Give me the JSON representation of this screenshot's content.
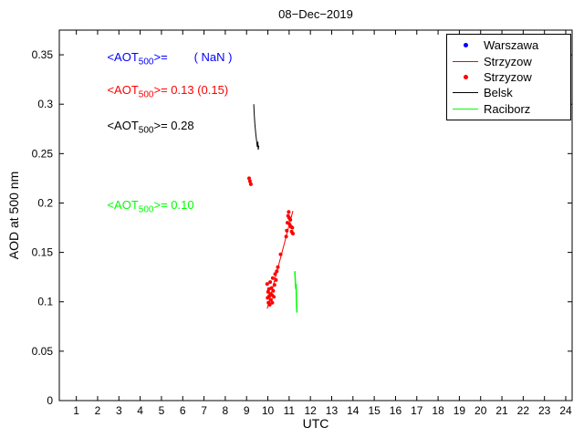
{
  "chart_data": {
    "type": "scatter",
    "title": "08−Dec−2019",
    "axes": {
      "xlabel": "UTC",
      "ylabel": "AOD at 500 nm",
      "xlim": [
        0.2,
        24.3
      ],
      "ylim": [
        0,
        0.375
      ],
      "x_ticks": [
        "1",
        "2",
        "3",
        "4",
        "5",
        "6",
        "7",
        "8",
        "9",
        "10",
        "11",
        "12",
        "13",
        "14",
        "15",
        "16",
        "17",
        "18",
        "19",
        "20",
        "21",
        "22",
        "23",
        "24"
      ],
      "y_ticks": [
        "0",
        "0.05",
        "0.1",
        "0.15",
        "0.2",
        "0.25",
        "0.3",
        "0.35"
      ],
      "grid": false
    },
    "series": [
      {
        "name": "Warszawa",
        "style": "dot",
        "color": "#0000ff",
        "points": []
      },
      {
        "name": "Strzyzow",
        "style": "line",
        "color": "#ff0000",
        "width": 1,
        "points": [
          [
            9.97,
            0.093
          ],
          [
            11.18,
            0.192
          ]
        ]
      },
      {
        "name": "Strzyzow",
        "style": "dot",
        "color": "#ff0000",
        "points": [
          [
            9.12,
            0.225
          ],
          [
            9.16,
            0.222
          ],
          [
            9.2,
            0.219
          ],
          [
            9.97,
            0.118
          ],
          [
            9.99,
            0.104
          ],
          [
            10.01,
            0.11
          ],
          [
            10.03,
            0.099
          ],
          [
            10.05,
            0.113
          ],
          [
            10.07,
            0.106
          ],
          [
            10.09,
            0.097
          ],
          [
            10.11,
            0.12
          ],
          [
            10.13,
            0.108
          ],
          [
            10.15,
            0.102
          ],
          [
            10.17,
            0.114
          ],
          [
            10.19,
            0.107
          ],
          [
            10.21,
            0.099
          ],
          [
            10.23,
            0.124
          ],
          [
            10.25,
            0.111
          ],
          [
            10.28,
            0.105
          ],
          [
            10.31,
            0.117
          ],
          [
            10.34,
            0.128
          ],
          [
            10.38,
            0.122
          ],
          [
            10.42,
            0.131
          ],
          [
            10.47,
            0.135
          ],
          [
            10.6,
            0.148
          ],
          [
            10.86,
            0.166
          ],
          [
            10.89,
            0.172
          ],
          [
            10.92,
            0.18
          ],
          [
            10.95,
            0.187
          ],
          [
            10.98,
            0.191
          ],
          [
            11.0,
            0.185
          ],
          [
            11.03,
            0.178
          ],
          [
            11.06,
            0.183
          ],
          [
            11.09,
            0.176
          ],
          [
            11.12,
            0.171
          ],
          [
            11.15,
            0.175
          ],
          [
            11.18,
            0.169
          ]
        ]
      },
      {
        "name": "Belsk",
        "style": "line",
        "color": "#000000",
        "width": 1,
        "points": [
          [
            9.34,
            0.3
          ],
          [
            9.36,
            0.29
          ],
          [
            9.39,
            0.28
          ],
          [
            9.43,
            0.271
          ],
          [
            9.47,
            0.263
          ],
          [
            9.5,
            0.257
          ],
          [
            9.53,
            0.262
          ],
          [
            9.55,
            0.254
          ],
          [
            9.58,
            0.258
          ]
        ]
      },
      {
        "name": "Raciborz",
        "style": "line",
        "color": "#00ff00",
        "width": 1.5,
        "points": [
          [
            11.27,
            0.131
          ],
          [
            11.29,
            0.122
          ],
          [
            11.31,
            0.113
          ],
          [
            11.33,
            0.118
          ],
          [
            11.34,
            0.104
          ],
          [
            11.35,
            0.096
          ],
          [
            11.37,
            0.089
          ]
        ]
      }
    ],
    "annotations": [
      {
        "pre": "<AOT",
        "sub": "500",
        "post": ">=        ( NaN )",
        "color": "#0000ff",
        "x": 2.45,
        "y": 0.345
      },
      {
        "pre": "<AOT",
        "sub": "500",
        "post": ">= 0.13 (0.15)",
        "color": "#ff0000",
        "x": 2.45,
        "y": 0.312
      },
      {
        "pre": "<AOT",
        "sub": "500",
        "post": ">= 0.28",
        "color": "#000000",
        "x": 2.45,
        "y": 0.276
      },
      {
        "pre": "<AOT",
        "sub": "500",
        "post": ">= 0.10",
        "color": "#00ff00",
        "x": 2.45,
        "y": 0.196
      }
    ],
    "legend": {
      "position": "top-right",
      "labels": [
        "Warszawa",
        "Strzyzow",
        "Strzyzow",
        "Belsk",
        "Raciborz"
      ]
    }
  }
}
